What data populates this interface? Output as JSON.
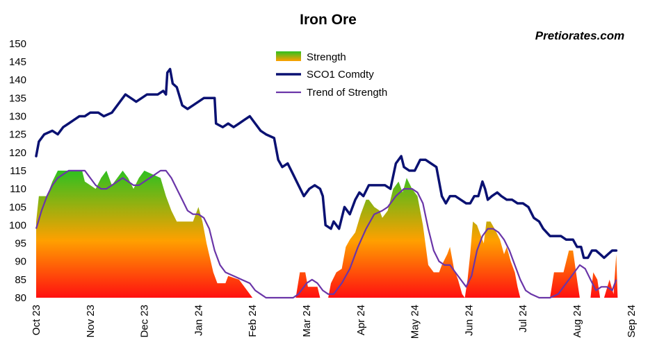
{
  "chart_data": {
    "type": "line",
    "title": "Iron Ore",
    "watermark": "Pretiorates.com",
    "xlabel": "",
    "ylabel": "",
    "ylim": [
      80,
      150
    ],
    "yticks": [
      80,
      85,
      90,
      95,
      100,
      105,
      110,
      115,
      120,
      125,
      130,
      135,
      140,
      145,
      150
    ],
    "xticks": [
      "Oct 23",
      "Nov 23",
      "Dec 23",
      "Jan 24",
      "Feb 24",
      "Mar 24",
      "Apr 24",
      "May 24",
      "Jun 24",
      "Jul 24",
      "Aug 24",
      "Sep 24"
    ],
    "grid": false,
    "legend": "top-center",
    "colors": {
      "price": "#0a1172",
      "trend": "#6a35a8",
      "strength_top": "#2fc020",
      "strength_mid": "#ffa000",
      "strength_bottom": "#ff1010"
    },
    "series": [
      {
        "name": "Strength",
        "type": "area",
        "points": [
          [
            0,
            101
          ],
          [
            0.1,
            108
          ],
          [
            0.4,
            108
          ],
          [
            0.6,
            112
          ],
          [
            0.8,
            115
          ],
          [
            1.7,
            115
          ],
          [
            1.8,
            112
          ],
          [
            2.2,
            110
          ],
          [
            2.4,
            113
          ],
          [
            2.6,
            115
          ],
          [
            2.8,
            111
          ],
          [
            3.0,
            113
          ],
          [
            3.2,
            115
          ],
          [
            3.4,
            113
          ],
          [
            3.6,
            110
          ],
          [
            3.8,
            113
          ],
          [
            4.0,
            115
          ],
          [
            4.6,
            113
          ],
          [
            4.8,
            108
          ],
          [
            5.0,
            104
          ],
          [
            5.2,
            101
          ],
          [
            5.8,
            101
          ],
          [
            6.0,
            105
          ],
          [
            6.15,
            101
          ],
          [
            6.3,
            95
          ],
          [
            6.55,
            87
          ],
          [
            6.7,
            84
          ],
          [
            7.0,
            84
          ],
          [
            7.1,
            86
          ],
          [
            7.5,
            85
          ],
          [
            7.8,
            82
          ],
          [
            8.0,
            80
          ],
          [
            9.6,
            80
          ],
          [
            9.75,
            87
          ],
          [
            9.95,
            87
          ],
          [
            10.05,
            83
          ],
          [
            10.4,
            83
          ],
          [
            10.5,
            80
          ],
          [
            10.8,
            80
          ],
          [
            10.9,
            84
          ],
          [
            11.1,
            87
          ],
          [
            11.3,
            88
          ],
          [
            11.45,
            94
          ],
          [
            11.6,
            96
          ],
          [
            11.8,
            98
          ],
          [
            12.0,
            103
          ],
          [
            12.2,
            107
          ],
          [
            12.3,
            107
          ],
          [
            12.5,
            105
          ],
          [
            12.7,
            104
          ],
          [
            12.8,
            102
          ],
          [
            13.0,
            104
          ],
          [
            13.2,
            110
          ],
          [
            13.4,
            112
          ],
          [
            13.55,
            109
          ],
          [
            13.7,
            113
          ],
          [
            13.9,
            110
          ],
          [
            14.1,
            108
          ],
          [
            14.3,
            100
          ],
          [
            14.5,
            89
          ],
          [
            14.7,
            87
          ],
          [
            14.9,
            87
          ],
          [
            15.0,
            89
          ],
          [
            15.2,
            92
          ],
          [
            15.3,
            94
          ],
          [
            15.45,
            88
          ],
          [
            15.6,
            85
          ],
          [
            15.75,
            81
          ],
          [
            15.85,
            80
          ],
          [
            15.95,
            85
          ],
          [
            16.05,
            92
          ],
          [
            16.15,
            101
          ],
          [
            16.3,
            100
          ],
          [
            16.45,
            97
          ],
          [
            16.55,
            95
          ],
          [
            16.65,
            101
          ],
          [
            16.8,
            101
          ],
          [
            16.95,
            99
          ],
          [
            17.15,
            96
          ],
          [
            17.3,
            92
          ],
          [
            17.4,
            94
          ],
          [
            17.55,
            90
          ],
          [
            17.7,
            87
          ],
          [
            17.8,
            83
          ],
          [
            17.9,
            80
          ],
          [
            19.0,
            80
          ],
          [
            19.15,
            87
          ],
          [
            19.5,
            87
          ],
          [
            19.7,
            93
          ],
          [
            19.85,
            93
          ],
          [
            20.0,
            85
          ],
          [
            20.1,
            80
          ],
          [
            20.5,
            80
          ],
          [
            20.6,
            87
          ],
          [
            20.75,
            85
          ],
          [
            20.85,
            80
          ],
          [
            21.0,
            80
          ],
          [
            21.2,
            85
          ],
          [
            21.35,
            81
          ],
          [
            21.45,
            92
          ],
          [
            21.5,
            80
          ]
        ]
      },
      {
        "name": "SCO1 Comdty",
        "type": "line",
        "points": [
          [
            0,
            119
          ],
          [
            0.1,
            123
          ],
          [
            0.3,
            125
          ],
          [
            0.6,
            126
          ],
          [
            0.8,
            125
          ],
          [
            1.0,
            127
          ],
          [
            1.2,
            128
          ],
          [
            1.4,
            129
          ],
          [
            1.6,
            130
          ],
          [
            1.8,
            130
          ],
          [
            2.0,
            131
          ],
          [
            2.3,
            131
          ],
          [
            2.5,
            130
          ],
          [
            2.8,
            131
          ],
          [
            3.0,
            133
          ],
          [
            3.1,
            134
          ],
          [
            3.3,
            136
          ],
          [
            3.5,
            135
          ],
          [
            3.7,
            134
          ],
          [
            3.9,
            135
          ],
          [
            4.1,
            136
          ],
          [
            4.3,
            136
          ],
          [
            4.5,
            136
          ],
          [
            4.7,
            137
          ],
          [
            4.8,
            136
          ],
          [
            4.85,
            142
          ],
          [
            4.95,
            143
          ],
          [
            5.05,
            139
          ],
          [
            5.2,
            138
          ],
          [
            5.4,
            133
          ],
          [
            5.6,
            132
          ],
          [
            5.8,
            133
          ],
          [
            6.0,
            134
          ],
          [
            6.2,
            135
          ],
          [
            6.4,
            135
          ],
          [
            6.6,
            135
          ],
          [
            6.65,
            128
          ],
          [
            6.9,
            127
          ],
          [
            7.1,
            128
          ],
          [
            7.3,
            127
          ],
          [
            7.5,
            128
          ],
          [
            7.7,
            129
          ],
          [
            7.9,
            130
          ],
          [
            8.1,
            128
          ],
          [
            8.3,
            126
          ],
          [
            8.5,
            125
          ],
          [
            8.8,
            124
          ],
          [
            8.95,
            118
          ],
          [
            9.1,
            116
          ],
          [
            9.3,
            117
          ],
          [
            9.5,
            114
          ],
          [
            9.7,
            111
          ],
          [
            9.9,
            108
          ],
          [
            10.1,
            110
          ],
          [
            10.3,
            111
          ],
          [
            10.5,
            110
          ],
          [
            10.6,
            108
          ],
          [
            10.7,
            100
          ],
          [
            10.9,
            99
          ],
          [
            11.0,
            101
          ],
          [
            11.2,
            99
          ],
          [
            11.4,
            105
          ],
          [
            11.6,
            103
          ],
          [
            11.8,
            107
          ],
          [
            11.95,
            109
          ],
          [
            12.1,
            108
          ],
          [
            12.3,
            111
          ],
          [
            12.5,
            111
          ],
          [
            12.7,
            111
          ],
          [
            12.9,
            111
          ],
          [
            13.1,
            110
          ],
          [
            13.3,
            117
          ],
          [
            13.5,
            119
          ],
          [
            13.6,
            116
          ],
          [
            13.8,
            115
          ],
          [
            14.0,
            115
          ],
          [
            14.2,
            118
          ],
          [
            14.4,
            118
          ],
          [
            14.6,
            117
          ],
          [
            14.8,
            116
          ],
          [
            15.0,
            108
          ],
          [
            15.15,
            106
          ],
          [
            15.3,
            108
          ],
          [
            15.5,
            108
          ],
          [
            15.7,
            107
          ],
          [
            15.9,
            106
          ],
          [
            16.05,
            106
          ],
          [
            16.2,
            108
          ],
          [
            16.35,
            108
          ],
          [
            16.5,
            112
          ],
          [
            16.6,
            110
          ],
          [
            16.7,
            107
          ],
          [
            16.85,
            108
          ],
          [
            17.05,
            109
          ],
          [
            17.2,
            108
          ],
          [
            17.4,
            107
          ],
          [
            17.6,
            107
          ],
          [
            17.8,
            106
          ],
          [
            18.0,
            106
          ],
          [
            18.2,
            105
          ],
          [
            18.4,
            102
          ],
          [
            18.6,
            101
          ],
          [
            18.75,
            99
          ],
          [
            19.0,
            97
          ],
          [
            19.2,
            97
          ],
          [
            19.4,
            97
          ],
          [
            19.6,
            96
          ],
          [
            19.85,
            96
          ],
          [
            20.0,
            94
          ],
          [
            20.15,
            94
          ],
          [
            20.25,
            91
          ],
          [
            20.4,
            91
          ],
          [
            20.55,
            93
          ],
          [
            20.7,
            93
          ],
          [
            20.85,
            92
          ],
          [
            21.0,
            91
          ],
          [
            21.15,
            92
          ],
          [
            21.3,
            93
          ],
          [
            21.45,
            93
          ]
        ]
      },
      {
        "name": "Trend of Strength",
        "type": "line",
        "points": [
          [
            0,
            99
          ],
          [
            0.2,
            104
          ],
          [
            0.4,
            108
          ],
          [
            0.6,
            111
          ],
          [
            0.8,
            113
          ],
          [
            1.0,
            114
          ],
          [
            1.2,
            115
          ],
          [
            1.5,
            115
          ],
          [
            1.8,
            115
          ],
          [
            2.0,
            113
          ],
          [
            2.2,
            111
          ],
          [
            2.4,
            110
          ],
          [
            2.6,
            110
          ],
          [
            2.8,
            111
          ],
          [
            3.0,
            112
          ],
          [
            3.2,
            113
          ],
          [
            3.4,
            112
          ],
          [
            3.6,
            111
          ],
          [
            3.8,
            111
          ],
          [
            4.0,
            112
          ],
          [
            4.2,
            113
          ],
          [
            4.4,
            114
          ],
          [
            4.6,
            115
          ],
          [
            4.8,
            115
          ],
          [
            5.0,
            113
          ],
          [
            5.2,
            110
          ],
          [
            5.4,
            107
          ],
          [
            5.6,
            104
          ],
          [
            5.8,
            103
          ],
          [
            6.0,
            103
          ],
          [
            6.2,
            102
          ],
          [
            6.4,
            99
          ],
          [
            6.6,
            93
          ],
          [
            6.8,
            89
          ],
          [
            7.0,
            87
          ],
          [
            7.3,
            86
          ],
          [
            7.6,
            85
          ],
          [
            7.9,
            84
          ],
          [
            8.1,
            82
          ],
          [
            8.3,
            81
          ],
          [
            8.5,
            80
          ],
          [
            9.0,
            80
          ],
          [
            9.5,
            80
          ],
          [
            9.7,
            81
          ],
          [
            10.0,
            84
          ],
          [
            10.2,
            85
          ],
          [
            10.4,
            84
          ],
          [
            10.6,
            82
          ],
          [
            10.8,
            81
          ],
          [
            11.0,
            81
          ],
          [
            11.3,
            84
          ],
          [
            11.6,
            88
          ],
          [
            11.9,
            94
          ],
          [
            12.2,
            99
          ],
          [
            12.5,
            103
          ],
          [
            12.8,
            104
          ],
          [
            13.0,
            105
          ],
          [
            13.3,
            108
          ],
          [
            13.6,
            110
          ],
          [
            13.9,
            110
          ],
          [
            14.1,
            109
          ],
          [
            14.3,
            106
          ],
          [
            14.5,
            99
          ],
          [
            14.7,
            93
          ],
          [
            14.9,
            90
          ],
          [
            15.1,
            89
          ],
          [
            15.3,
            89
          ],
          [
            15.5,
            87
          ],
          [
            15.7,
            85
          ],
          [
            15.9,
            83
          ],
          [
            16.1,
            86
          ],
          [
            16.3,
            93
          ],
          [
            16.5,
            97
          ],
          [
            16.7,
            99
          ],
          [
            16.9,
            99
          ],
          [
            17.1,
            98
          ],
          [
            17.3,
            96
          ],
          [
            17.5,
            93
          ],
          [
            17.7,
            89
          ],
          [
            17.9,
            85
          ],
          [
            18.1,
            82
          ],
          [
            18.3,
            81
          ],
          [
            18.6,
            80
          ],
          [
            19.0,
            80
          ],
          [
            19.3,
            81
          ],
          [
            19.6,
            84
          ],
          [
            19.9,
            87
          ],
          [
            20.1,
            89
          ],
          [
            20.3,
            88
          ],
          [
            20.5,
            85
          ],
          [
            20.7,
            82
          ],
          [
            20.9,
            83
          ],
          [
            21.1,
            83
          ],
          [
            21.3,
            82
          ],
          [
            21.45,
            85
          ]
        ]
      }
    ]
  }
}
